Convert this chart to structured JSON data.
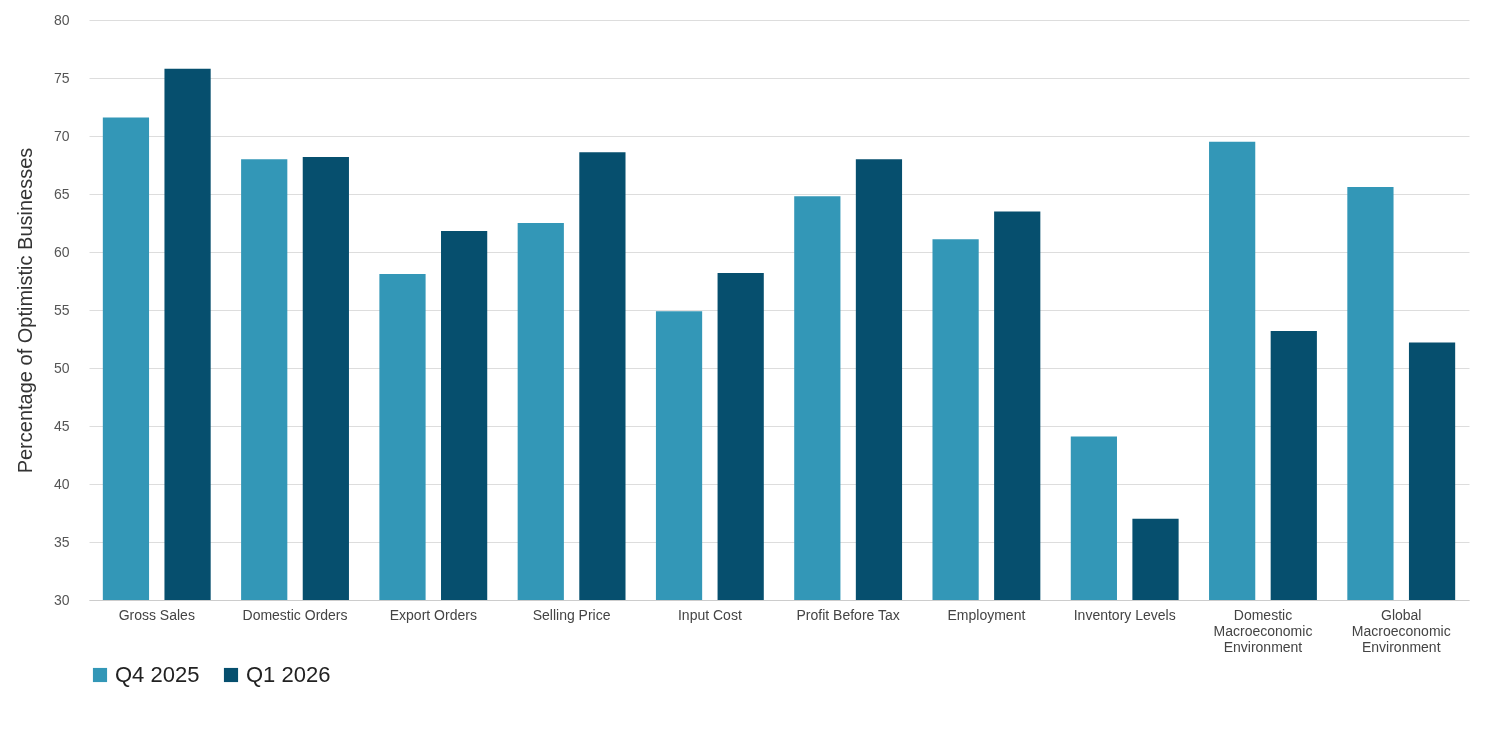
{
  "chart_data": {
    "type": "bar",
    "ylabel": "Percentage of Optimistic Businesses",
    "categories": [
      "Gross Sales",
      "Domestic Orders",
      "Export Orders",
      "Selling Price",
      "Input Cost",
      "Profit Before Tax",
      "Employment",
      "Inventory Levels",
      "Domestic Macroeconomic Environment",
      "Global Macroeconomic Environment"
    ],
    "series": [
      {
        "name": "Q4 2025",
        "color": "#3397b7",
        "values": [
          71.6,
          68.0,
          58.1,
          62.5,
          54.9,
          64.8,
          61.1,
          44.1,
          69.5,
          65.6
        ]
      },
      {
        "name": "Q1 2026",
        "color": "#064f6e",
        "values": [
          75.8,
          68.2,
          61.8,
          68.6,
          58.2,
          68.0,
          63.5,
          37.0,
          53.2,
          52.2
        ]
      }
    ],
    "ylim": [
      30,
      80
    ],
    "yticks": [
      30,
      35,
      40,
      45,
      50,
      55,
      60,
      65,
      70,
      75,
      80
    ],
    "grid": "y",
    "legend": "bottom"
  }
}
